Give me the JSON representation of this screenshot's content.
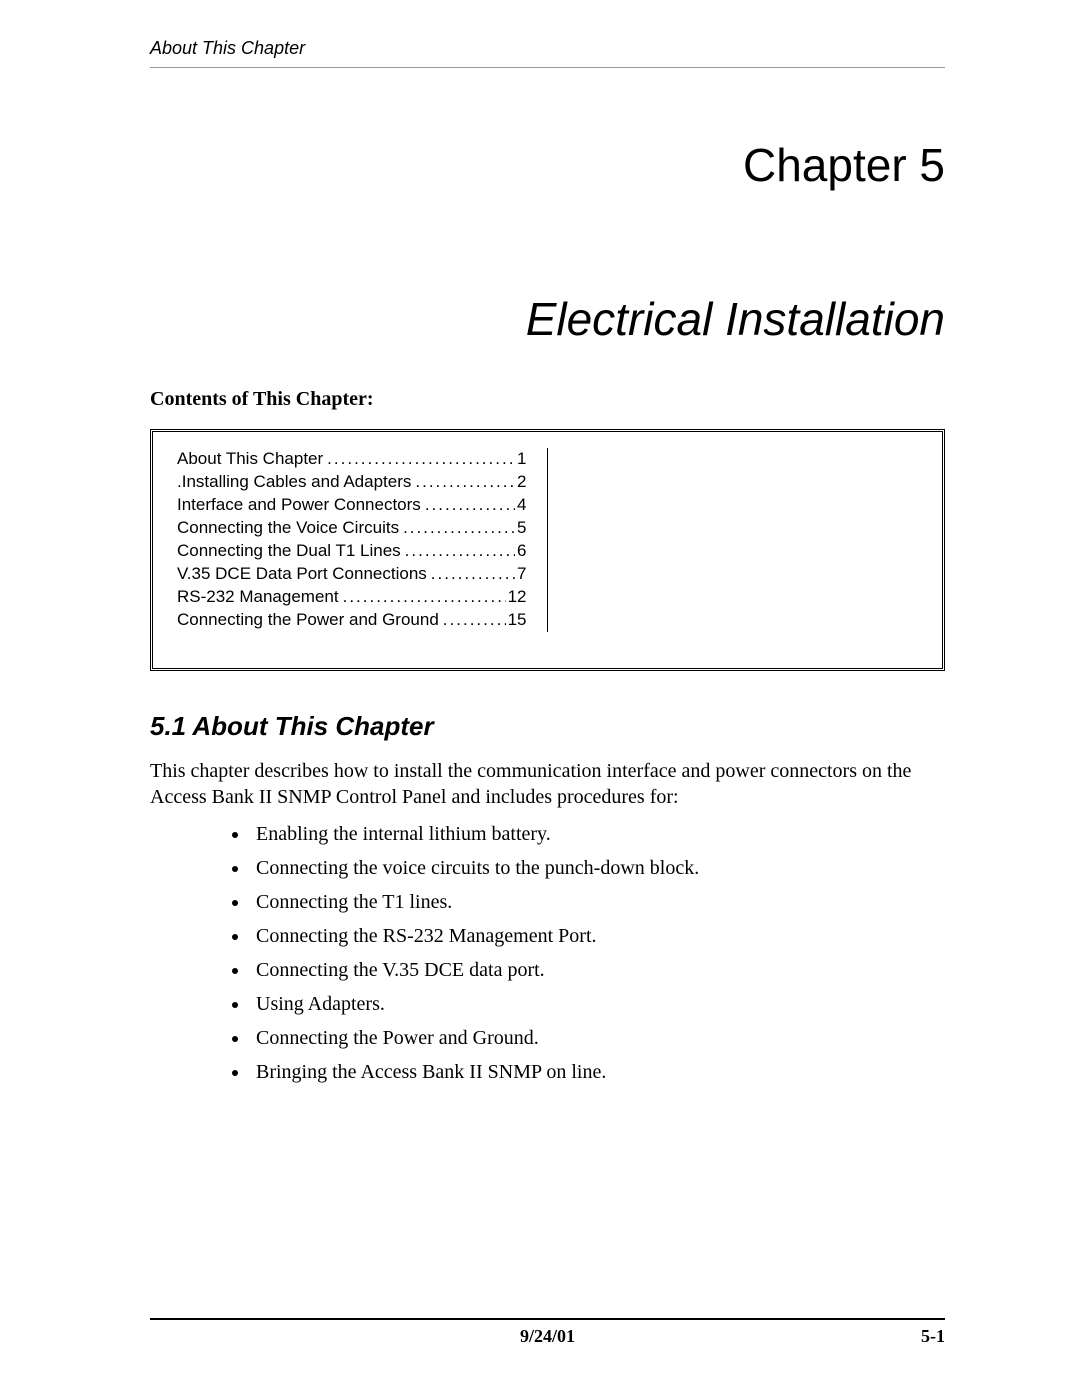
{
  "header": {
    "running_head": "About This Chapter"
  },
  "chapter": {
    "label": "Chapter 5",
    "title": "Electrical Installation",
    "contents_label": "Contents of This Chapter:"
  },
  "toc": [
    {
      "title": "About This Chapter",
      "page": "1"
    },
    {
      "title": ".Installing Cables and Adapters",
      "page": "2"
    },
    {
      "title": "Interface and Power Connectors",
      "page": "4"
    },
    {
      "title": "Connecting the Voice Circuits",
      "page": "5"
    },
    {
      "title": "Connecting the Dual T1 Lines",
      "page": "6"
    },
    {
      "title": "V.35 DCE Data Port Connections",
      "page": "7"
    },
    {
      "title": "RS-232 Management",
      "page": "12"
    },
    {
      "title": "Connecting the Power and Ground",
      "page": "15"
    }
  ],
  "section": {
    "heading": "5.1  About This Chapter",
    "intro": "This chapter describes how to install the communication interface and power connectors on the Access Bank II SNMP Control Panel and includes procedures for:",
    "bullets": [
      "Enabling the internal lithium battery.",
      "Connecting the voice circuits to the punch-down block.",
      "Connecting the T1 lines.",
      "Connecting the RS-232 Management Port.",
      "Connecting the V.35 DCE data port.",
      "Using Adapters.",
      "Connecting the Power and Ground.",
      "Bringing the Access Bank II SNMP on line."
    ]
  },
  "footer": {
    "date": "9/24/01",
    "page": "5-1"
  }
}
